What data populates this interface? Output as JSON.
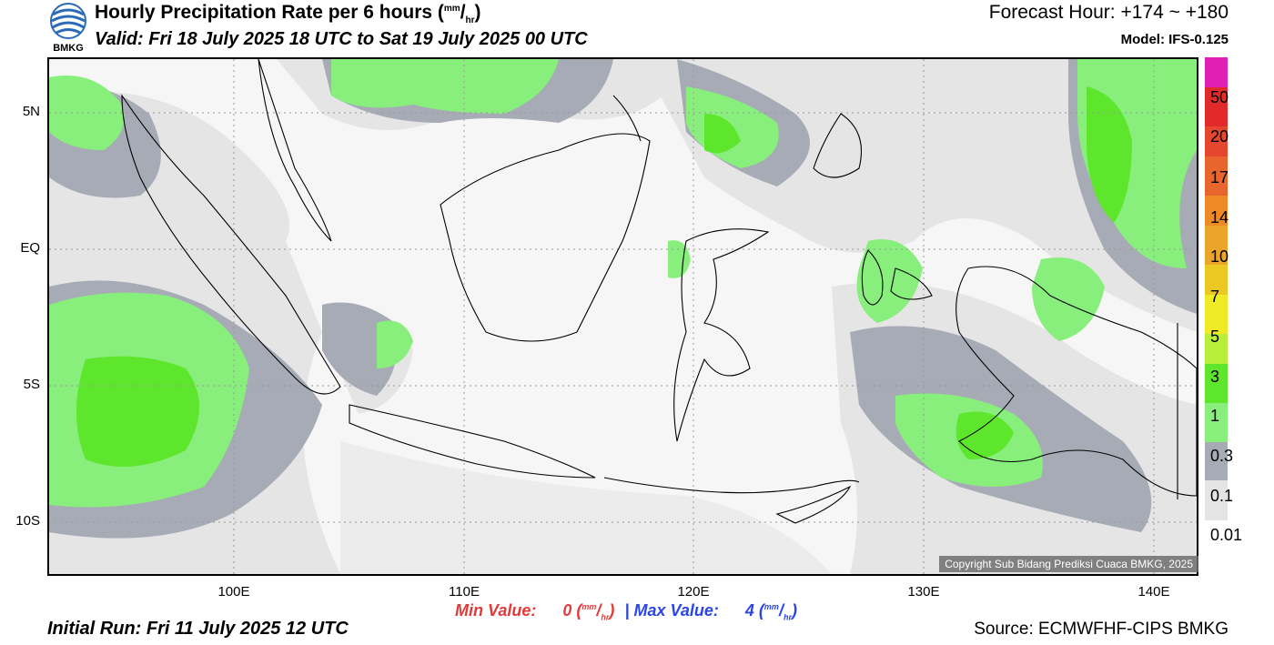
{
  "header": {
    "title_main": "Hourly Precipitation Rate per 6 hours (",
    "title_unit_num": "mm",
    "title_unit_slash": "/",
    "title_unit_den": "hr",
    "title_close": ")",
    "valid_text": "Valid: Fri 18 July 2025 18 UTC to Sat 19 July 2025 00 UTC",
    "forecast_hour": "Forecast Hour: +174 ~ +180",
    "model": "Model: IFS-0.125",
    "logo_text": "BMKG"
  },
  "map": {
    "lat_labels": [
      "5N",
      "EQ",
      "5S",
      "10S"
    ],
    "lon_labels": [
      "100E",
      "110E",
      "120E",
      "130E",
      "140E"
    ],
    "copyright": "Copyright Sub Bidang Prediksi Cuaca BMKG, 2025"
  },
  "colorbar": {
    "labels": [
      "50",
      "20",
      "17",
      "14",
      "10",
      "7",
      "5",
      "3",
      "1",
      "0.3",
      "0.1",
      "0.01"
    ],
    "colors": [
      "#e01fb4",
      "#e32a2a",
      "#e6462e",
      "#e8662e",
      "#ee8a26",
      "#eaa52a",
      "#ecc822",
      "#eeea26",
      "#b6ee3a",
      "#5ee62c",
      "#88ef7c",
      "#a7abb6",
      "#e4e4e4"
    ]
  },
  "footer": {
    "min_label": "Min Value:",
    "min_value": "0",
    "max_label": "Max Value:",
    "max_value": "4",
    "separator": "|",
    "unit_num": "mm",
    "unit_slash": "/",
    "unit_den": "hr",
    "initial_run": "Initial Run: Fri 11 July 2025 12 UTC",
    "source": "Source: ECMWFHF-CIPS BMKG"
  }
}
